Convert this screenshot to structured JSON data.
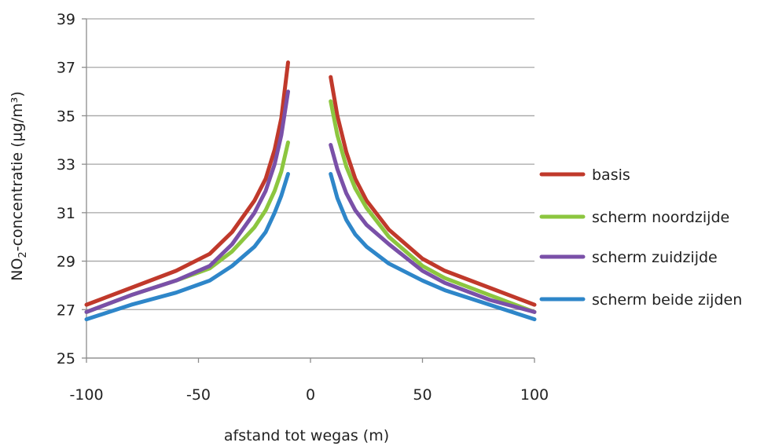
{
  "chart_data": {
    "type": "line",
    "xlabel": "afstand tot wegas (m)",
    "ylabel": "NO2-concentratie (µg/m³)",
    "ylabel_parts": {
      "pre": "NO",
      "sub": "2",
      "post": "-concentratie (µg/m³)"
    },
    "xlim": [
      -100,
      100
    ],
    "ylim": [
      25,
      39
    ],
    "xticks": [
      "-100",
      "-50",
      "0",
      "50",
      "100"
    ],
    "yticks": [
      "25",
      "27",
      "29",
      "31",
      "33",
      "35",
      "37",
      "39"
    ],
    "grid": "horizontal",
    "legend_position": "right",
    "series": [
      {
        "name": "basis",
        "color": "#C0392B",
        "segments": [
          [
            [
              -100,
              27.2
            ],
            [
              -80,
              27.9
            ],
            [
              -60,
              28.6
            ],
            [
              -45,
              29.3
            ],
            [
              -35,
              30.2
            ],
            [
              -25,
              31.5
            ],
            [
              -20,
              32.4
            ],
            [
              -16,
              33.6
            ],
            [
              -13,
              34.9
            ],
            [
              -10,
              37.2
            ]
          ],
          [
            [
              9,
              36.6
            ],
            [
              12,
              35.0
            ],
            [
              16,
              33.5
            ],
            [
              20,
              32.4
            ],
            [
              25,
              31.5
            ],
            [
              35,
              30.3
            ],
            [
              50,
              29.1
            ],
            [
              60,
              28.6
            ],
            [
              80,
              27.9
            ],
            [
              100,
              27.2
            ]
          ]
        ]
      },
      {
        "name": "scherm noordzijde",
        "color": "#8CC63F",
        "segments": [
          [
            [
              -100,
              26.9
            ],
            [
              -80,
              27.6
            ],
            [
              -60,
              28.2
            ],
            [
              -45,
              28.7
            ],
            [
              -35,
              29.4
            ],
            [
              -25,
              30.4
            ],
            [
              -20,
              31.1
            ],
            [
              -16,
              31.9
            ],
            [
              -13,
              32.7
            ],
            [
              -10,
              33.9
            ]
          ],
          [
            [
              9,
              35.6
            ],
            [
              12,
              34.2
            ],
            [
              16,
              32.9
            ],
            [
              20,
              32.0
            ],
            [
              25,
              31.2
            ],
            [
              35,
              30.0
            ],
            [
              50,
              28.8
            ],
            [
              60,
              28.3
            ],
            [
              80,
              27.6
            ],
            [
              100,
              26.9
            ]
          ]
        ]
      },
      {
        "name": "scherm zuidzijde",
        "color": "#7A50A8",
        "segments": [
          [
            [
              -100,
              26.9
            ],
            [
              -80,
              27.6
            ],
            [
              -60,
              28.2
            ],
            [
              -45,
              28.8
            ],
            [
              -35,
              29.7
            ],
            [
              -25,
              31.0
            ],
            [
              -20,
              31.9
            ],
            [
              -16,
              33.0
            ],
            [
              -13,
              34.2
            ],
            [
              -10,
              36.0
            ]
          ],
          [
            [
              9,
              33.8
            ],
            [
              12,
              32.8
            ],
            [
              16,
              31.8
            ],
            [
              20,
              31.1
            ],
            [
              25,
              30.5
            ],
            [
              35,
              29.7
            ],
            [
              50,
              28.6
            ],
            [
              60,
              28.1
            ],
            [
              80,
              27.4
            ],
            [
              100,
              26.9
            ]
          ]
        ]
      },
      {
        "name": "scherm beide zijden",
        "color": "#2E86C9",
        "segments": [
          [
            [
              -100,
              26.6
            ],
            [
              -80,
              27.2
            ],
            [
              -60,
              27.7
            ],
            [
              -45,
              28.2
            ],
            [
              -35,
              28.8
            ],
            [
              -25,
              29.6
            ],
            [
              -20,
              30.2
            ],
            [
              -16,
              31.0
            ],
            [
              -13,
              31.7
            ],
            [
              -10,
              32.6
            ]
          ],
          [
            [
              9,
              32.6
            ],
            [
              12,
              31.6
            ],
            [
              16,
              30.7
            ],
            [
              20,
              30.1
            ],
            [
              25,
              29.6
            ],
            [
              35,
              28.9
            ],
            [
              50,
              28.2
            ],
            [
              60,
              27.8
            ],
            [
              80,
              27.2
            ],
            [
              100,
              26.6
            ]
          ]
        ]
      }
    ]
  }
}
